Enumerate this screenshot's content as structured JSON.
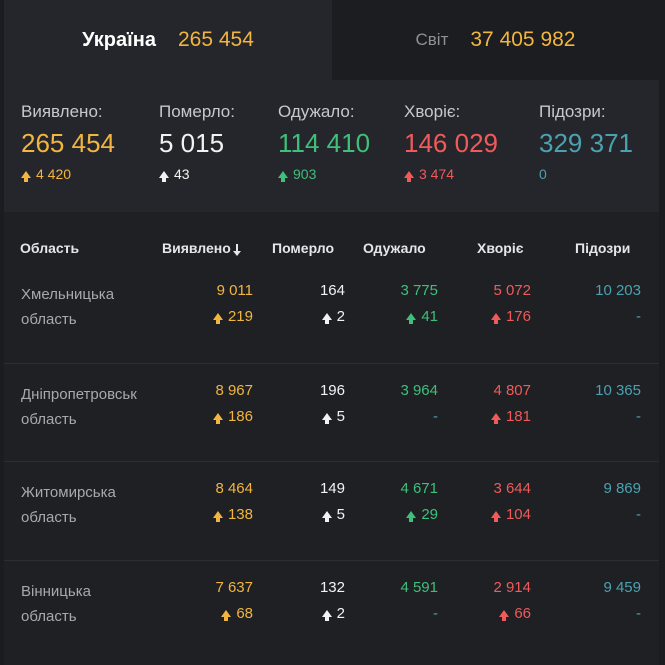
{
  "tabs": {
    "ukraine": {
      "label": "Україна",
      "value": "265 454"
    },
    "world": {
      "label": "Світ",
      "value": "37 405 982"
    }
  },
  "summary": {
    "detected": {
      "label": "Виявлено:",
      "value": "265 454",
      "delta": "4 420"
    },
    "died": {
      "label": "Померло:",
      "value": "5 015",
      "delta": "43"
    },
    "recovered": {
      "label": "Одужало:",
      "value": "114 410",
      "delta": "903"
    },
    "sick": {
      "label": "Хворіє:",
      "value": "146 029",
      "delta": "3 474"
    },
    "suspected": {
      "label": "Підозри:",
      "value": "329 371",
      "delta": "0"
    }
  },
  "table": {
    "headers": {
      "region": "Область",
      "detected": "Виявлено",
      "died": "Померло",
      "recovered": "Одужало",
      "sick": "Хворіє",
      "suspected": "Підозри"
    },
    "rows": [
      {
        "name1": "Хмельницька",
        "name2": "область",
        "detected": "9 011",
        "detected_d": "219",
        "died": "164",
        "died_d": "2",
        "recovered": "3 775",
        "recovered_d": "41",
        "sick": "5 072",
        "sick_d": "176",
        "suspected": "10 203",
        "suspected_d": "-"
      },
      {
        "name1": "Дніпропетровськ",
        "name2": "область",
        "detected": "8 967",
        "detected_d": "186",
        "died": "196",
        "died_d": "5",
        "recovered": "3 964",
        "recovered_d": "-",
        "sick": "4 807",
        "sick_d": "181",
        "suspected": "10 365",
        "suspected_d": "-"
      },
      {
        "name1": "Житомирська",
        "name2": "область",
        "detected": "8 464",
        "detected_d": "138",
        "died": "149",
        "died_d": "5",
        "recovered": "4 671",
        "recovered_d": "29",
        "sick": "3 644",
        "sick_d": "104",
        "suspected": "9 869",
        "suspected_d": "-"
      },
      {
        "name1": "Вінницька",
        "name2": "область",
        "detected": "7 637",
        "detected_d": "68",
        "died": "132",
        "died_d": "2",
        "recovered": "4 591",
        "recovered_d": "-",
        "sick": "2 914",
        "sick_d": "66",
        "suspected": "9 459",
        "suspected_d": "-"
      }
    ]
  },
  "colors": {
    "detected": "#f2b53f",
    "died": "#f2f2f2",
    "recovered": "#3fbf7a",
    "sick": "#f05a5a",
    "suspected": "#4aa2b0"
  }
}
